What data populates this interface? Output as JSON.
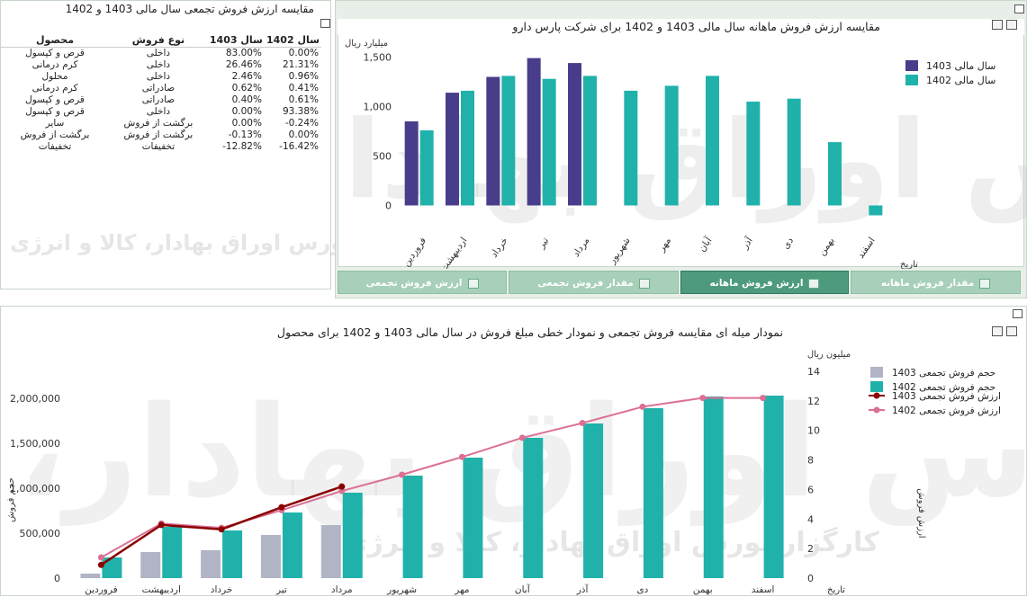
{
  "table_panel": {
    "title": "مقایسه ارزش فروش تجمعی سال مالی 1403 و 1402",
    "headers": {
      "y1402": "سال 1402",
      "y1403": "سال 1403",
      "type": "نوع فروش",
      "product": "محصول"
    },
    "rows": [
      {
        "product": "قرص و کپسول",
        "type": "داخلی",
        "y1403": "83.00%",
        "y1402": "0.00%"
      },
      {
        "product": "کرم درمانی",
        "type": "داخلی",
        "y1403": "26.46%",
        "y1402": "21.31%"
      },
      {
        "product": "محلول",
        "type": "داخلی",
        "y1403": "2.46%",
        "y1402": "0.96%"
      },
      {
        "product": "کرم درمانی",
        "type": "صادراتی",
        "y1403": "0.62%",
        "y1402": "0.41%"
      },
      {
        "product": "قرص و کپسول",
        "type": "صادراتی",
        "y1403": "0.40%",
        "y1402": "0.61%"
      },
      {
        "product": "قرص و کپسول",
        "type": "داخلی",
        "y1403": "0.00%",
        "y1402": "93.38%"
      },
      {
        "product": "سایر",
        "type": "برگشت از فروش",
        "y1403": "0.00%",
        "y1402": "-0.24%"
      },
      {
        "product": "برگشت از فروش",
        "type": "برگشت از فروش",
        "y1403": "-0.13%",
        "y1402": "0.00%"
      },
      {
        "product": "تخفیفات",
        "type": "تخفیفات",
        "y1403": "-12.82%",
        "y1402": "-16.42%"
      }
    ]
  },
  "watermark": {
    "brand_text": "کارگزار بورس اوراق بهادار، کالا و انرژی",
    "brand_text_small": "کارگزار بورس اوراق بهادار، کالا و انرژی"
  },
  "tabs": [
    {
      "label": "مقدار فروش ماهانه",
      "active": false,
      "icon": "bar-chart-icon"
    },
    {
      "label": "ارزش فروش ماهانه",
      "active": true,
      "icon": "bar-chart-icon"
    },
    {
      "label": "مقدار فروش تجمعی",
      "active": false,
      "icon": "line-chart-icon"
    },
    {
      "label": "ارزش فروش تجمعی",
      "active": false,
      "icon": "line-chart-icon"
    }
  ],
  "colors": {
    "y1403_bar": "#483d8b",
    "y1402_bar": "#20b2aa",
    "cum1403_bar": "#b0b4c4",
    "line1403": "#8b0000",
    "line1402": "#db7093",
    "tab_active": "#4d9a7d"
  },
  "chart_data": [
    {
      "type": "bar",
      "title": "مقایسه ارزش فروش ماهانه سال مالی 1403 و 1402 برای شرکت پارس دارو",
      "ylabel": "میلیارد ریال",
      "xlabel": "تاریخ",
      "ylim": [
        -150,
        1650
      ],
      "yticks": [
        0,
        500,
        1000,
        1500
      ],
      "ytick_labels": [
        "0",
        "500",
        "1,000",
        "1,500"
      ],
      "categories": [
        "فروردین",
        "اردیبهشت",
        "خرداد",
        "تیر",
        "مرداد",
        "شهریور",
        "مهر",
        "آبان",
        "آذر",
        "دی",
        "بهمن",
        "اسفند"
      ],
      "series": [
        {
          "name": "سال مالی  1403",
          "values": [
            850,
            1140,
            1300,
            1490,
            1440,
            null,
            null,
            null,
            null,
            null,
            null,
            null
          ]
        },
        {
          "name": "سال مالی  1402",
          "values": [
            760,
            1160,
            1310,
            1280,
            1310,
            1160,
            1210,
            1310,
            1050,
            1080,
            640,
            -100
          ]
        }
      ],
      "legend": "top-right"
    },
    {
      "type": "bar",
      "title": "نمودار میله ای مقایسه فروش تجمعی و نمودار خطی مبلغ فروش در سال مالی 1403 و 1402 برای محصول",
      "ylabel": "حجم فروش",
      "y2label": "ارزش فروش",
      "y2unit": "میلیون ریال",
      "xlabel": "تاریخ",
      "ylim": [
        0,
        2300000
      ],
      "yticks": [
        0,
        500000,
        1000000,
        1500000,
        2000000
      ],
      "ytick_labels": [
        "0",
        "500,000",
        "1,000,000",
        "1,500,000",
        "2,000,000"
      ],
      "y2lim": [
        0,
        14
      ],
      "y2ticks": [
        0,
        2,
        4,
        6,
        8,
        10,
        12,
        14
      ],
      "categories": [
        "فروردین",
        "اردیبهشت",
        "خرداد",
        "تیر",
        "مرداد",
        "شهریور",
        "مهر",
        "آبان",
        "آذر",
        "دی",
        "بهمن",
        "اسفند"
      ],
      "bar_series": [
        {
          "name": "حجم فروش تجمعی  1403",
          "values": [
            50000,
            290000,
            310000,
            480000,
            590000,
            null,
            null,
            null,
            null,
            null,
            null,
            null
          ]
        },
        {
          "name": "حجم فروش تجمعی  1402",
          "values": [
            230000,
            570000,
            530000,
            730000,
            950000,
            1140000,
            1340000,
            1560000,
            1720000,
            1890000,
            2020000,
            2030000
          ]
        }
      ],
      "line_series": [
        {
          "name": "ارزش فروش تجمعی  1403",
          "values": [
            0.9,
            3.6,
            3.3,
            4.8,
            6.2,
            null,
            null,
            null,
            null,
            null,
            null,
            null
          ]
        },
        {
          "name": "ارزش فروش تجمعی  1402",
          "values": [
            1.4,
            3.7,
            3.4,
            4.6,
            5.9,
            7.0,
            8.2,
            9.5,
            10.5,
            11.6,
            12.2,
            12.2
          ]
        }
      ],
      "legend": "top-right"
    }
  ]
}
